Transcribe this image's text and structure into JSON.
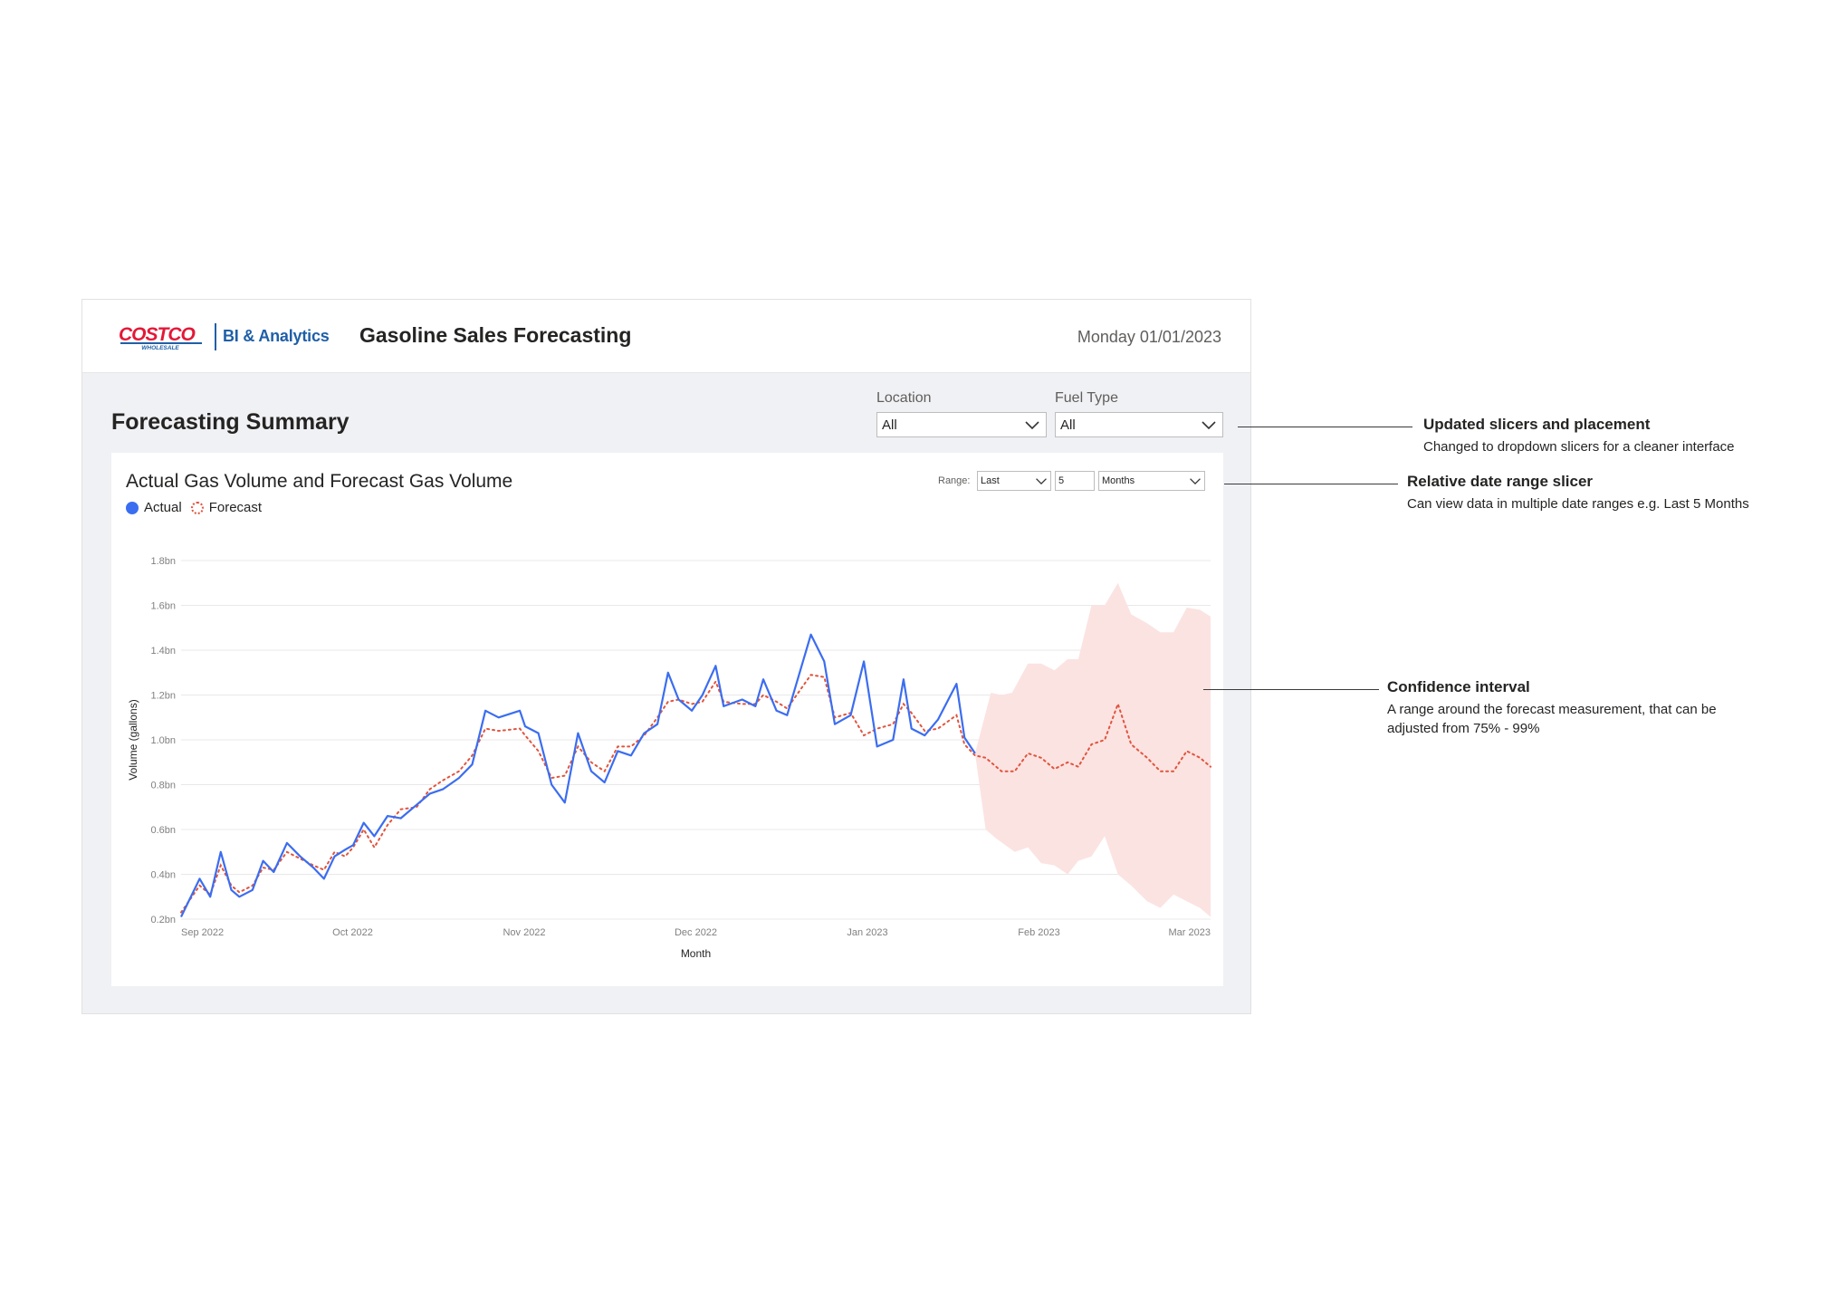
{
  "header": {
    "logo_text": "COSTCO",
    "logo_sub": "WHOLESALE",
    "brand_sub": "BI & Analytics",
    "app_title": "Gasoline Sales Forecasting",
    "date": "Monday 01/01/2023"
  },
  "summary": {
    "title": "Forecasting Summary"
  },
  "slicers": {
    "location": {
      "label": "Location",
      "value": "All"
    },
    "fuel_type": {
      "label": "Fuel Type",
      "value": "All"
    }
  },
  "range": {
    "label": "Range:",
    "mode": "Last",
    "count": "5",
    "unit": "Months"
  },
  "legend": {
    "actual": "Actual",
    "forecast": "Forecast"
  },
  "colors": {
    "actual": "#3b6df0",
    "forecast": "#e0553f",
    "band": "#fbe3e1",
    "brand": "#1f5fa8",
    "logo_red": "#e31837"
  },
  "annotations": [
    {
      "title": "Updated slicers and placement",
      "desc": "Changed to dropdown slicers for a cleaner interface"
    },
    {
      "title": "Relative date range slicer",
      "desc": "Can view data in multiple date ranges e.g. Last 5 Months"
    },
    {
      "title": "Confidence interval",
      "desc": "A range around the forecast measurement, that can be adjusted from 75% - 99%"
    }
  ],
  "chart_data": {
    "type": "line",
    "title": "Actual Gas Volume and Forecast Gas Volume",
    "xlabel": "Month",
    "ylabel": "Volume (gallons)",
    "ylim": [
      0.2,
      1.8
    ],
    "yticks": [
      "0.2bn",
      "0.4bn",
      "0.6bn",
      "0.8bn",
      "1.0bn",
      "1.2bn",
      "1.4bn",
      "1.6bn",
      "1.8bn"
    ],
    "xticks": [
      "Sep 2022",
      "Oct 2022",
      "Nov 2022",
      "Dec 2022",
      "Jan 2023",
      "Feb 2023",
      "Mar 2023"
    ],
    "grid": true,
    "series": [
      {
        "name": "Actual",
        "points": [
          [
            0.0,
            0.21
          ],
          [
            0.07,
            0.38
          ],
          [
            0.11,
            0.3
          ],
          [
            0.15,
            0.5
          ],
          [
            0.19,
            0.33
          ],
          [
            0.22,
            0.3
          ],
          [
            0.27,
            0.33
          ],
          [
            0.31,
            0.46
          ],
          [
            0.35,
            0.41
          ],
          [
            0.4,
            0.54
          ],
          [
            0.45,
            0.48
          ],
          [
            0.5,
            0.43
          ],
          [
            0.54,
            0.38
          ],
          [
            0.58,
            0.48
          ],
          [
            0.62,
            0.51
          ],
          [
            0.65,
            0.53
          ],
          [
            0.69,
            0.63
          ],
          [
            0.73,
            0.57
          ],
          [
            0.78,
            0.66
          ],
          [
            0.83,
            0.65
          ],
          [
            0.89,
            0.71
          ],
          [
            0.94,
            0.76
          ],
          [
            0.99,
            0.78
          ],
          [
            1.05,
            0.83
          ],
          [
            1.1,
            0.89
          ],
          [
            1.15,
            1.13
          ],
          [
            1.2,
            1.1
          ],
          [
            1.28,
            1.13
          ],
          [
            1.3,
            1.06
          ],
          [
            1.35,
            1.03
          ],
          [
            1.4,
            0.8
          ],
          [
            1.45,
            0.72
          ],
          [
            1.5,
            1.03
          ],
          [
            1.55,
            0.86
          ],
          [
            1.6,
            0.81
          ],
          [
            1.65,
            0.95
          ],
          [
            1.7,
            0.93
          ],
          [
            1.75,
            1.03
          ],
          [
            1.8,
            1.07
          ],
          [
            1.84,
            1.3
          ],
          [
            1.88,
            1.18
          ],
          [
            1.93,
            1.13
          ],
          [
            1.97,
            1.2
          ],
          [
            2.02,
            1.33
          ],
          [
            2.05,
            1.15
          ],
          [
            2.12,
            1.18
          ],
          [
            2.17,
            1.15
          ],
          [
            2.2,
            1.27
          ],
          [
            2.25,
            1.13
          ],
          [
            2.29,
            1.11
          ],
          [
            2.38,
            1.47
          ],
          [
            2.43,
            1.35
          ],
          [
            2.47,
            1.07
          ],
          [
            2.53,
            1.11
          ],
          [
            2.58,
            1.35
          ],
          [
            2.63,
            0.97
          ],
          [
            2.69,
            1.0
          ],
          [
            2.73,
            1.27
          ],
          [
            2.76,
            1.05
          ],
          [
            2.81,
            1.02
          ],
          [
            2.86,
            1.09
          ],
          [
            2.93,
            1.25
          ],
          [
            2.96,
            1.01
          ],
          [
            3.0,
            0.94
          ]
        ]
      },
      {
        "name": "Forecast",
        "points": [
          [
            0.0,
            0.23
          ],
          [
            0.07,
            0.35
          ],
          [
            0.11,
            0.31
          ],
          [
            0.15,
            0.44
          ],
          [
            0.19,
            0.35
          ],
          [
            0.22,
            0.32
          ],
          [
            0.27,
            0.35
          ],
          [
            0.31,
            0.43
          ],
          [
            0.35,
            0.42
          ],
          [
            0.4,
            0.5
          ],
          [
            0.45,
            0.47
          ],
          [
            0.5,
            0.44
          ],
          [
            0.54,
            0.42
          ],
          [
            0.58,
            0.5
          ],
          [
            0.62,
            0.48
          ],
          [
            0.65,
            0.52
          ],
          [
            0.69,
            0.6
          ],
          [
            0.73,
            0.52
          ],
          [
            0.78,
            0.62
          ],
          [
            0.83,
            0.69
          ],
          [
            0.89,
            0.7
          ],
          [
            0.94,
            0.78
          ],
          [
            0.99,
            0.82
          ],
          [
            1.05,
            0.86
          ],
          [
            1.1,
            0.93
          ],
          [
            1.15,
            1.05
          ],
          [
            1.2,
            1.04
          ],
          [
            1.28,
            1.05
          ],
          [
            1.3,
            1.02
          ],
          [
            1.35,
            0.95
          ],
          [
            1.4,
            0.83
          ],
          [
            1.45,
            0.84
          ],
          [
            1.5,
            0.97
          ],
          [
            1.55,
            0.9
          ],
          [
            1.6,
            0.86
          ],
          [
            1.65,
            0.97
          ],
          [
            1.7,
            0.97
          ],
          [
            1.75,
            1.02
          ],
          [
            1.8,
            1.1
          ],
          [
            1.84,
            1.17
          ],
          [
            1.88,
            1.18
          ],
          [
            1.93,
            1.16
          ],
          [
            1.97,
            1.17
          ],
          [
            2.02,
            1.26
          ],
          [
            2.05,
            1.17
          ],
          [
            2.12,
            1.16
          ],
          [
            2.17,
            1.16
          ],
          [
            2.2,
            1.2
          ],
          [
            2.25,
            1.17
          ],
          [
            2.29,
            1.14
          ],
          [
            2.38,
            1.29
          ],
          [
            2.43,
            1.28
          ],
          [
            2.47,
            1.1
          ],
          [
            2.53,
            1.12
          ],
          [
            2.58,
            1.02
          ],
          [
            2.63,
            1.05
          ],
          [
            2.69,
            1.07
          ],
          [
            2.73,
            1.16
          ],
          [
            2.76,
            1.12
          ],
          [
            2.81,
            1.04
          ],
          [
            2.86,
            1.05
          ],
          [
            2.93,
            1.11
          ],
          [
            2.96,
            0.98
          ],
          [
            3.0,
            0.93
          ],
          [
            3.04,
            0.92
          ],
          [
            3.1,
            0.86
          ],
          [
            3.15,
            0.86
          ],
          [
            3.2,
            0.94
          ],
          [
            3.25,
            0.92
          ],
          [
            3.3,
            0.87
          ],
          [
            3.35,
            0.9
          ],
          [
            3.39,
            0.88
          ],
          [
            3.44,
            0.98
          ],
          [
            3.49,
            1.0
          ],
          [
            3.54,
            1.16
          ],
          [
            3.59,
            0.98
          ],
          [
            3.65,
            0.92
          ],
          [
            3.7,
            0.86
          ],
          [
            3.75,
            0.86
          ],
          [
            3.8,
            0.95
          ],
          [
            3.85,
            0.92
          ],
          [
            3.89,
            0.88
          ]
        ]
      }
    ],
    "confidence_band": {
      "upper": [
        [
          3.0,
          0.94
        ],
        [
          3.06,
          1.21
        ],
        [
          3.1,
          1.2
        ],
        [
          3.14,
          1.21
        ],
        [
          3.2,
          1.34
        ],
        [
          3.25,
          1.34
        ],
        [
          3.3,
          1.31
        ],
        [
          3.35,
          1.36
        ],
        [
          3.39,
          1.36
        ],
        [
          3.44,
          1.6
        ],
        [
          3.49,
          1.6
        ],
        [
          3.54,
          1.7
        ],
        [
          3.59,
          1.56
        ],
        [
          3.65,
          1.52
        ],
        [
          3.7,
          1.48
        ],
        [
          3.75,
          1.48
        ],
        [
          3.8,
          1.59
        ],
        [
          3.85,
          1.58
        ],
        [
          3.89,
          1.55
        ]
      ],
      "lower": [
        [
          3.0,
          0.94
        ],
        [
          3.04,
          0.6
        ],
        [
          3.08,
          0.56
        ],
        [
          3.15,
          0.5
        ],
        [
          3.2,
          0.52
        ],
        [
          3.25,
          0.45
        ],
        [
          3.3,
          0.44
        ],
        [
          3.35,
          0.4
        ],
        [
          3.39,
          0.46
        ],
        [
          3.44,
          0.48
        ],
        [
          3.49,
          0.57
        ],
        [
          3.54,
          0.4
        ],
        [
          3.59,
          0.35
        ],
        [
          3.65,
          0.28
        ],
        [
          3.7,
          0.25
        ],
        [
          3.75,
          0.31
        ],
        [
          3.8,
          0.28
        ],
        [
          3.85,
          0.25
        ],
        [
          3.89,
          0.21
        ]
      ]
    }
  }
}
